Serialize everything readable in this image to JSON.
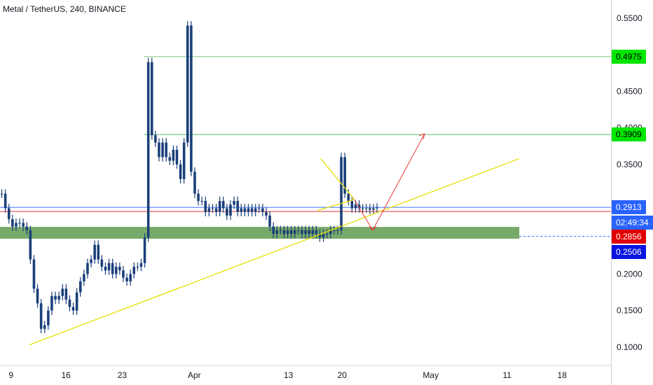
{
  "header": {
    "title": "Metal / TetherUS, 240, BINANCE"
  },
  "price_axis": {
    "ticks": [
      "0.5500",
      "0.4500",
      "0.4000",
      "0.3500",
      "0.2000",
      "0.1500",
      "0.1000"
    ],
    "tick_values": [
      0.55,
      0.45,
      0.4,
      0.35,
      0.2,
      0.15,
      0.1
    ]
  },
  "time_axis": {
    "ticks": [
      "9",
      "16",
      "23",
      "Apr",
      "13",
      "20",
      "May",
      "11",
      "18"
    ]
  },
  "tags": [
    {
      "label": "0.4975",
      "value": 0.4975,
      "bg": "#00e600",
      "fg": "#000000"
    },
    {
      "label": "0.3909",
      "value": 0.3909,
      "bg": "#00e600",
      "fg": "#000000"
    },
    {
      "label": "0.2913",
      "value": 0.2913,
      "bg": "#2962ff",
      "fg": "#ffffff"
    },
    {
      "label": "02:49:34",
      "value": 0.27,
      "bg": "#2962ff",
      "fg": "#ffffff"
    },
    {
      "label": "0.2856",
      "value": 0.2515,
      "bg": "#e00000",
      "fg": "#ffffff"
    },
    {
      "label": "0.2506",
      "value": 0.2305,
      "bg": "#0a14e0",
      "fg": "#ffffff"
    }
  ],
  "colors": {
    "candles": "#1a3f7a",
    "trendline": "#e8e000",
    "projection": "#e53935",
    "support_zone": "#5f9a50",
    "level_line": "#4caf50",
    "price_line_red": "#e53935",
    "price_line_blue": "#2962ff"
  },
  "chart_data": {
    "type": "line",
    "title": "Metal / TetherUS, 240, BINANCE",
    "xlabel": "",
    "ylabel": "",
    "ylim": [
      0.075,
      0.575
    ],
    "x_ticks": [
      "9",
      "16",
      "23",
      "Apr",
      "13",
      "20",
      "May",
      "11",
      "18"
    ],
    "series": [
      {
        "values": [
          0.31,
          0.29,
          0.275,
          0.265,
          0.27,
          0.27,
          0.265,
          0.26,
          0.22,
          0.18,
          0.16,
          0.125,
          0.13,
          0.15,
          0.17,
          0.165,
          0.17,
          0.18,
          0.165,
          0.155,
          0.15,
          0.175,
          0.19,
          0.2,
          0.215,
          0.22,
          0.24,
          0.22,
          0.21,
          0.205,
          0.215,
          0.2,
          0.21,
          0.205,
          0.195,
          0.19,
          0.2,
          0.21,
          0.21,
          0.215,
          0.25,
          0.49,
          0.39,
          0.38,
          0.36,
          0.38,
          0.36,
          0.355,
          0.37,
          0.35,
          0.33,
          0.38,
          0.54,
          0.34,
          0.31,
          0.3,
          0.3,
          0.285,
          0.29,
          0.29,
          0.285,
          0.3,
          0.29,
          0.28,
          0.295,
          0.3,
          0.285,
          0.29,
          0.285,
          0.29,
          0.285,
          0.29,
          0.29,
          0.285,
          0.28,
          0.265,
          0.255,
          0.26,
          0.26,
          0.255,
          0.26,
          0.255,
          0.26,
          0.26,
          0.255,
          0.26,
          0.255,
          0.26,
          0.255,
          0.25,
          0.255,
          0.255,
          0.26,
          0.26,
          0.26,
          0.36,
          0.31,
          0.3,
          0.29,
          0.295,
          0.29,
          0.29,
          0.29,
          0.288,
          0.29,
          0.291
        ]
      }
    ],
    "horizontal_levels": [
      0.4975,
      0.3909,
      0.2913,
      0.2856
    ],
    "support_zone": [
      0.2483,
      0.2645
    ],
    "trendlines": [
      {
        "from": [
          0.048,
          0.103
        ],
        "to": [
          0.85,
          0.358
        ]
      },
      {
        "from": [
          0.52,
          0.287
        ],
        "to": [
          0.58,
          0.302
        ]
      },
      {
        "from": [
          0.525,
          0.358
        ],
        "to": [
          0.58,
          0.302
        ]
      }
    ],
    "projection": [
      {
        "from": [
          0.58,
          0.302
        ],
        "to": [
          0.61,
          0.26
        ]
      },
      {
        "from": [
          0.61,
          0.26
        ],
        "to": [
          0.695,
          0.392
        ]
      }
    ]
  }
}
